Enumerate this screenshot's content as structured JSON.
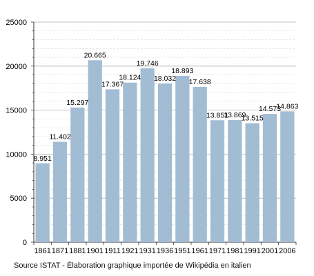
{
  "chart_data": {
    "type": "bar",
    "categories": [
      "1861",
      "1871",
      "1881",
      "1901",
      "1911",
      "1921",
      "1931",
      "1936",
      "1951",
      "1961",
      "1971",
      "1981",
      "1991",
      "2001",
      "2006"
    ],
    "values": [
      8951,
      11402,
      15297,
      20665,
      17367,
      18124,
      19746,
      18032,
      18893,
      17638,
      13851,
      13869,
      13515,
      14573,
      14863
    ],
    "data_labels": [
      "8.951",
      "11.402",
      "15.297",
      "20.665",
      "17.367",
      "18.124",
      "19.746",
      "18.032",
      "18.893",
      "17.638",
      "13.851",
      "13.869",
      "13.515",
      "14.573",
      "14.863"
    ],
    "y_ticks": [
      "0",
      "5000",
      "10000",
      "15000",
      "20000",
      "25000"
    ],
    "ylim": [
      0,
      25000
    ],
    "bar_color": "#a2bcd4",
    "grid": true,
    "xlabel": "",
    "ylabel": "",
    "title": ""
  },
  "source_text": "Source ISTAT - Élaboration graphique importée de Wikipédia en italien"
}
